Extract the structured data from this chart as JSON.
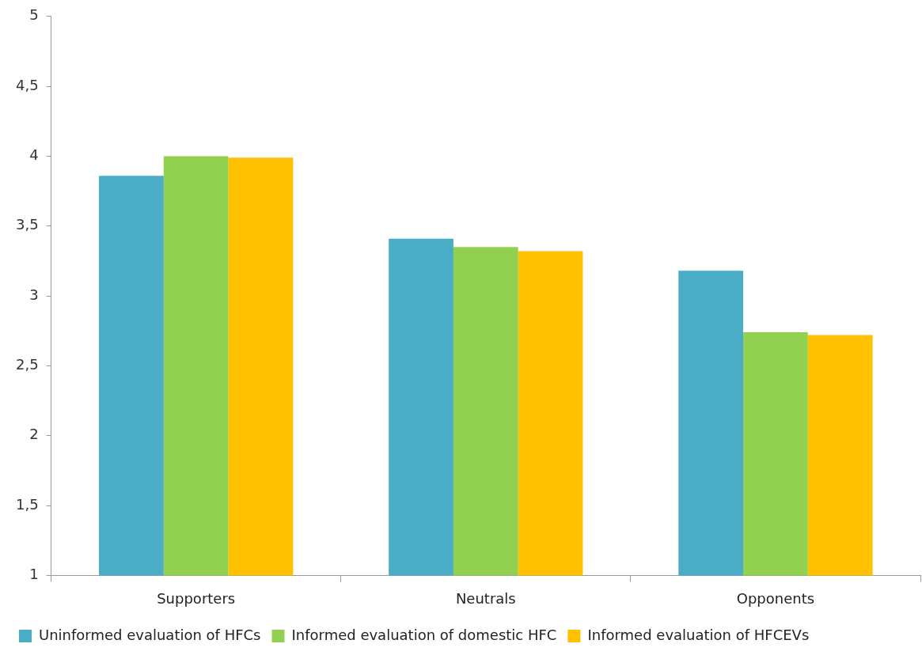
{
  "chart_data": {
    "type": "bar",
    "categories": [
      "Supporters",
      "Neutrals",
      "Opponents"
    ],
    "series": [
      {
        "name": "Uninformed evaluation of HFCs",
        "color": "#4bacc6",
        "values": [
          3.86,
          3.41,
          3.18
        ]
      },
      {
        "name": "Informed evaluation of domestic HFC",
        "color": "#92d050",
        "values": [
          4.0,
          3.35,
          2.74
        ]
      },
      {
        "name": "Informed evaluation of HFCEVs",
        "color": "#ffc000",
        "values": [
          3.99,
          3.32,
          2.72
        ]
      }
    ],
    "ylim": [
      1,
      5
    ],
    "yticks": [
      1,
      {
        "value": 1.5,
        "label": "1,5"
      },
      2,
      {
        "value": 2.5,
        "label": "2,5"
      },
      3,
      {
        "value": 3.5,
        "label": "3,5"
      },
      4,
      {
        "value": 4.5,
        "label": "4,5"
      },
      5
    ],
    "grid": false,
    "legend": "bottom"
  }
}
